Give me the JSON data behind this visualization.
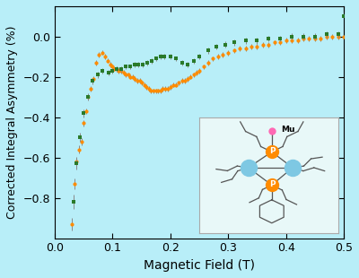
{
  "background_color": "#b8eef8",
  "plot_bg_color": "#b8eef8",
  "xlabel": "Magnetic Field (T)",
  "ylabel": "Corrected Integral Asymmetry (%)",
  "xlim": [
    0.0,
    0.5
  ],
  "ylim": [
    -1.0,
    0.15
  ],
  "yticks": [
    0.0,
    -0.2,
    -0.4,
    -0.6,
    -0.8
  ],
  "xticks": [
    0.0,
    0.1,
    0.2,
    0.3,
    0.4,
    0.5
  ],
  "orange_color": "#FF8C00",
  "green_color": "#2A7A2A",
  "orange_x": [
    0.03,
    0.034,
    0.038,
    0.042,
    0.046,
    0.05,
    0.054,
    0.058,
    0.062,
    0.067,
    0.072,
    0.077,
    0.082,
    0.087,
    0.092,
    0.097,
    0.1,
    0.103,
    0.107,
    0.111,
    0.115,
    0.119,
    0.123,
    0.127,
    0.131,
    0.135,
    0.139,
    0.143,
    0.147,
    0.151,
    0.155,
    0.159,
    0.163,
    0.167,
    0.171,
    0.175,
    0.179,
    0.183,
    0.187,
    0.191,
    0.195,
    0.2,
    0.205,
    0.21,
    0.215,
    0.22,
    0.225,
    0.23,
    0.235,
    0.24,
    0.245,
    0.25,
    0.258,
    0.266,
    0.274,
    0.282,
    0.29,
    0.3,
    0.31,
    0.32,
    0.33,
    0.34,
    0.35,
    0.36,
    0.37,
    0.38,
    0.39,
    0.4,
    0.41,
    0.42,
    0.43,
    0.44,
    0.45,
    0.46,
    0.47,
    0.48,
    0.49,
    0.5
  ],
  "orange_y": [
    -0.93,
    -0.73,
    -0.62,
    -0.56,
    -0.52,
    -0.43,
    -0.37,
    -0.3,
    -0.26,
    -0.21,
    -0.13,
    -0.09,
    -0.08,
    -0.1,
    -0.12,
    -0.14,
    -0.15,
    -0.16,
    -0.16,
    -0.17,
    -0.17,
    -0.18,
    -0.19,
    -0.19,
    -0.2,
    -0.2,
    -0.21,
    -0.22,
    -0.22,
    -0.23,
    -0.24,
    -0.25,
    -0.26,
    -0.27,
    -0.27,
    -0.27,
    -0.27,
    -0.27,
    -0.26,
    -0.26,
    -0.26,
    -0.25,
    -0.24,
    -0.24,
    -0.23,
    -0.22,
    -0.22,
    -0.21,
    -0.2,
    -0.19,
    -0.18,
    -0.17,
    -0.15,
    -0.13,
    -0.11,
    -0.1,
    -0.09,
    -0.08,
    -0.07,
    -0.06,
    -0.06,
    -0.05,
    -0.05,
    -0.04,
    -0.04,
    -0.03,
    -0.03,
    -0.02,
    -0.02,
    -0.02,
    -0.01,
    -0.01,
    -0.01,
    -0.01,
    0.0,
    0.0,
    0.0,
    0.0
  ],
  "orange_yerr": [
    0.03,
    0.025,
    0.022,
    0.02,
    0.018,
    0.016,
    0.015,
    0.014,
    0.013,
    0.013,
    0.012,
    0.012,
    0.012,
    0.012,
    0.012,
    0.012,
    0.012,
    0.012,
    0.012,
    0.012,
    0.012,
    0.012,
    0.012,
    0.012,
    0.012,
    0.012,
    0.012,
    0.012,
    0.012,
    0.012,
    0.012,
    0.012,
    0.012,
    0.012,
    0.012,
    0.012,
    0.012,
    0.012,
    0.012,
    0.012,
    0.012,
    0.012,
    0.012,
    0.012,
    0.012,
    0.012,
    0.012,
    0.012,
    0.012,
    0.012,
    0.012,
    0.012,
    0.013,
    0.013,
    0.013,
    0.013,
    0.013,
    0.013,
    0.013,
    0.013,
    0.013,
    0.013,
    0.013,
    0.013,
    0.013,
    0.013,
    0.013,
    0.013,
    0.013,
    0.013,
    0.013,
    0.013,
    0.013,
    0.013,
    0.013,
    0.013,
    0.013,
    0.013
  ],
  "green_x": [
    0.033,
    0.038,
    0.044,
    0.05,
    0.057,
    0.065,
    0.074,
    0.083,
    0.093,
    0.1,
    0.108,
    0.115,
    0.123,
    0.13,
    0.138,
    0.145,
    0.153,
    0.16,
    0.168,
    0.175,
    0.183,
    0.19,
    0.2,
    0.21,
    0.22,
    0.23,
    0.24,
    0.25,
    0.265,
    0.28,
    0.295,
    0.31,
    0.33,
    0.35,
    0.37,
    0.39,
    0.41,
    0.43,
    0.45,
    0.47,
    0.49,
    0.5
  ],
  "green_y": [
    -0.82,
    -0.63,
    -0.5,
    -0.38,
    -0.3,
    -0.22,
    -0.19,
    -0.17,
    -0.18,
    -0.17,
    -0.16,
    -0.16,
    -0.15,
    -0.15,
    -0.14,
    -0.14,
    -0.14,
    -0.13,
    -0.12,
    -0.11,
    -0.1,
    -0.1,
    -0.1,
    -0.11,
    -0.13,
    -0.14,
    -0.12,
    -0.1,
    -0.07,
    -0.05,
    -0.04,
    -0.03,
    -0.02,
    -0.02,
    -0.01,
    -0.01,
    0.0,
    0.0,
    0.0,
    0.01,
    0.01,
    0.1
  ],
  "green_yerr": [
    0.035,
    0.028,
    0.022,
    0.02,
    0.018,
    0.016,
    0.015,
    0.014,
    0.014,
    0.013,
    0.013,
    0.013,
    0.013,
    0.013,
    0.013,
    0.013,
    0.013,
    0.013,
    0.013,
    0.013,
    0.013,
    0.013,
    0.013,
    0.013,
    0.013,
    0.014,
    0.014,
    0.014,
    0.014,
    0.014,
    0.015,
    0.015,
    0.015,
    0.015,
    0.015,
    0.015,
    0.015,
    0.015,
    0.015,
    0.015,
    0.015,
    0.015
  ]
}
